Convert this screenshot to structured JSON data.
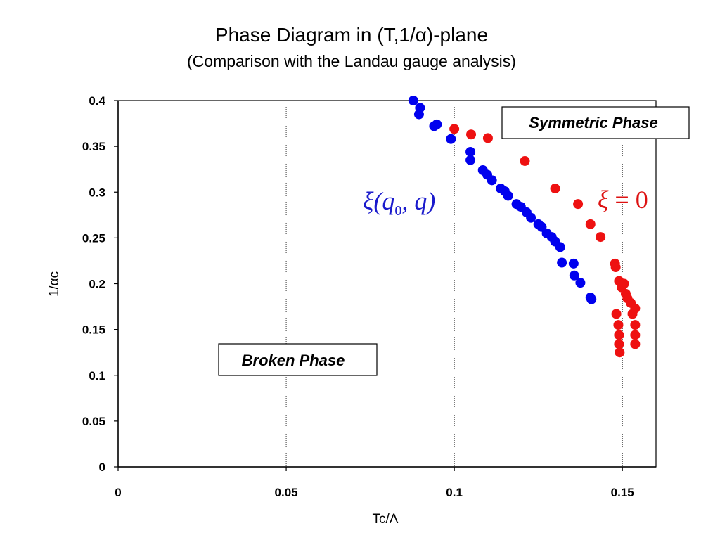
{
  "title": "Phase Diagram in (T,1/α)-plane",
  "subtitle": "(Comparison with the Landau gauge analysis)",
  "chart_data": {
    "type": "scatter",
    "xlabel": "Tc/Λ",
    "ylabel": "1/αc",
    "xlim": [
      0,
      0.16
    ],
    "ylim": [
      0,
      0.4
    ],
    "xticks": [
      "0",
      "0.05",
      "0.1",
      "0.15"
    ],
    "yticks": [
      "0",
      "0.05",
      "0.1",
      "0.15",
      "0.2",
      "0.25",
      "0.3",
      "0.35",
      "0.4"
    ],
    "grid": "vertical",
    "annotations": {
      "symmetric_phase": "Symmetric Phase",
      "broken_phase": "Broken Phase"
    },
    "series": [
      {
        "label": "ξ(q0,q)",
        "color": "#0000ee",
        "points": [
          [
            0.0878,
            0.4
          ],
          [
            0.0895,
            0.385
          ],
          [
            0.0898,
            0.392
          ],
          [
            0.094,
            0.372
          ],
          [
            0.0948,
            0.374
          ],
          [
            0.099,
            0.358
          ],
          [
            0.1048,
            0.344
          ],
          [
            0.1048,
            0.335
          ],
          [
            0.1085,
            0.324
          ],
          [
            0.1098,
            0.319
          ],
          [
            0.1112,
            0.313
          ],
          [
            0.1138,
            0.304
          ],
          [
            0.115,
            0.301
          ],
          [
            0.116,
            0.296
          ],
          [
            0.1185,
            0.287
          ],
          [
            0.1198,
            0.284
          ],
          [
            0.1215,
            0.278
          ],
          [
            0.1228,
            0.272
          ],
          [
            0.125,
            0.265
          ],
          [
            0.126,
            0.262
          ],
          [
            0.1275,
            0.255
          ],
          [
            0.129,
            0.251
          ],
          [
            0.13,
            0.246
          ],
          [
            0.1315,
            0.24
          ],
          [
            0.132,
            0.223
          ],
          [
            0.1355,
            0.222
          ],
          [
            0.1357,
            0.209
          ],
          [
            0.1375,
            0.201
          ],
          [
            0.1405,
            0.185
          ],
          [
            0.1408,
            0.183
          ]
        ]
      },
      {
        "label": "ξ = 0",
        "color": "#ee1111",
        "points": [
          [
            0.1,
            0.369
          ],
          [
            0.105,
            0.363
          ],
          [
            0.11,
            0.359
          ],
          [
            0.121,
            0.334
          ],
          [
            0.13,
            0.304
          ],
          [
            0.1368,
            0.287
          ],
          [
            0.1405,
            0.265
          ],
          [
            0.1435,
            0.251
          ],
          [
            0.1478,
            0.222
          ],
          [
            0.148,
            0.218
          ],
          [
            0.149,
            0.203
          ],
          [
            0.1498,
            0.196
          ],
          [
            0.1505,
            0.2
          ],
          [
            0.151,
            0.189
          ],
          [
            0.1515,
            0.184
          ],
          [
            0.1525,
            0.179
          ],
          [
            0.153,
            0.167
          ],
          [
            0.1538,
            0.173
          ],
          [
            0.1482,
            0.167
          ],
          [
            0.1488,
            0.155
          ],
          [
            0.1538,
            0.155
          ],
          [
            0.149,
            0.144
          ],
          [
            0.1538,
            0.144
          ],
          [
            0.149,
            0.134
          ],
          [
            0.1538,
            0.134
          ],
          [
            0.1492,
            0.125
          ]
        ]
      }
    ]
  }
}
